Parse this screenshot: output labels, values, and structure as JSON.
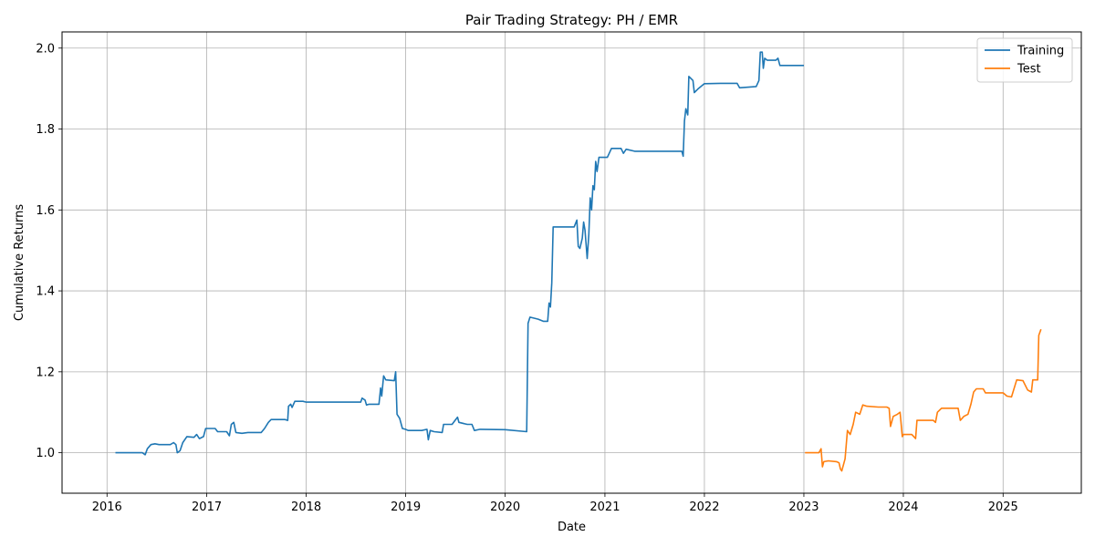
{
  "chart_data": {
    "type": "line",
    "title": "Pair Trading Strategy: PH / EMR",
    "xlabel": "Date",
    "ylabel": "Cumulative Returns",
    "x_ticks": [
      "2016",
      "2017",
      "2018",
      "2019",
      "2020",
      "2021",
      "2022",
      "2023",
      "2024",
      "2025"
    ],
    "y_ticks": [
      "1.0",
      "1.2",
      "1.4",
      "1.6",
      "1.8",
      "2.0"
    ],
    "xlim": [
      "2015-07-20",
      "2025-10-15"
    ],
    "ylim": [
      0.9,
      2.04
    ],
    "grid": true,
    "legend_position": "top-right",
    "series": [
      {
        "name": "Training",
        "color": "#1f77b4",
        "points": [
          [
            "2016-02-01",
            1.0
          ],
          [
            "2016-05-10",
            1.0
          ],
          [
            "2016-05-20",
            0.995
          ],
          [
            "2016-05-28",
            1.01
          ],
          [
            "2016-06-10",
            1.02
          ],
          [
            "2016-06-25",
            1.022
          ],
          [
            "2016-07-10",
            1.02
          ],
          [
            "2016-08-20",
            1.02
          ],
          [
            "2016-09-01",
            1.025
          ],
          [
            "2016-09-10",
            1.02
          ],
          [
            "2016-09-15",
            1.0
          ],
          [
            "2016-09-25",
            1.005
          ],
          [
            "2016-10-05",
            1.025
          ],
          [
            "2016-10-20",
            1.04
          ],
          [
            "2016-11-15",
            1.038
          ],
          [
            "2016-11-25",
            1.045
          ],
          [
            "2016-12-05",
            1.035
          ],
          [
            "2016-12-20",
            1.04
          ],
          [
            "2016-12-28",
            1.06
          ],
          [
            "2017-02-01",
            1.06
          ],
          [
            "2017-02-10",
            1.052
          ],
          [
            "2017-03-15",
            1.052
          ],
          [
            "2017-03-25",
            1.042
          ],
          [
            "2017-04-01",
            1.07
          ],
          [
            "2017-04-10",
            1.075
          ],
          [
            "2017-04-18",
            1.05
          ],
          [
            "2017-05-10",
            1.048
          ],
          [
            "2017-06-01",
            1.05
          ],
          [
            "2017-07-20",
            1.05
          ],
          [
            "2017-08-01",
            1.06
          ],
          [
            "2017-08-15",
            1.075
          ],
          [
            "2017-08-25",
            1.082
          ],
          [
            "2017-09-15",
            1.082
          ],
          [
            "2017-10-15",
            1.082
          ],
          [
            "2017-10-25",
            1.08
          ],
          [
            "2017-10-28",
            1.115
          ],
          [
            "2017-11-05",
            1.12
          ],
          [
            "2017-11-10",
            1.112
          ],
          [
            "2017-11-20",
            1.127
          ],
          [
            "2017-12-20",
            1.127
          ],
          [
            "2018-01-01",
            1.125
          ],
          [
            "2018-03-01",
            1.125
          ],
          [
            "2018-06-01",
            1.125
          ],
          [
            "2018-07-20",
            1.125
          ],
          [
            "2018-07-25",
            1.135
          ],
          [
            "2018-08-05",
            1.13
          ],
          [
            "2018-08-10",
            1.118
          ],
          [
            "2018-08-20",
            1.12
          ],
          [
            "2018-09-10",
            1.12
          ],
          [
            "2018-09-25",
            1.12
          ],
          [
            "2018-10-01",
            1.16
          ],
          [
            "2018-10-05",
            1.14
          ],
          [
            "2018-10-12",
            1.19
          ],
          [
            "2018-10-20",
            1.18
          ],
          [
            "2018-11-20",
            1.178
          ],
          [
            "2018-11-25",
            1.2
          ],
          [
            "2018-11-30",
            1.095
          ],
          [
            "2018-12-10",
            1.085
          ],
          [
            "2018-12-20",
            1.06
          ],
          [
            "2018-12-31",
            1.058
          ],
          [
            "2019-01-10",
            1.055
          ],
          [
            "2019-03-01",
            1.055
          ],
          [
            "2019-03-20",
            1.058
          ],
          [
            "2019-03-25",
            1.032
          ],
          [
            "2019-04-01",
            1.055
          ],
          [
            "2019-04-15",
            1.052
          ],
          [
            "2019-05-15",
            1.05
          ],
          [
            "2019-05-20",
            1.07
          ],
          [
            "2019-06-20",
            1.07
          ],
          [
            "2019-07-01",
            1.08
          ],
          [
            "2019-07-10",
            1.088
          ],
          [
            "2019-07-15",
            1.075
          ],
          [
            "2019-08-15",
            1.07
          ],
          [
            "2019-09-01",
            1.07
          ],
          [
            "2019-09-10",
            1.055
          ],
          [
            "2019-10-01",
            1.058
          ],
          [
            "2020-01-01",
            1.057
          ],
          [
            "2020-03-20",
            1.052
          ],
          [
            "2020-03-25",
            1.32
          ],
          [
            "2020-04-01",
            1.335
          ],
          [
            "2020-05-01",
            1.33
          ],
          [
            "2020-05-20",
            1.325
          ],
          [
            "2020-06-05",
            1.325
          ],
          [
            "2020-06-10",
            1.37
          ],
          [
            "2020-06-15",
            1.36
          ],
          [
            "2020-06-20",
            1.42
          ],
          [
            "2020-06-25",
            1.558
          ],
          [
            "2020-08-01",
            1.558
          ],
          [
            "2020-09-10",
            1.558
          ],
          [
            "2020-09-20",
            1.575
          ],
          [
            "2020-09-25",
            1.51
          ],
          [
            "2020-10-01",
            1.505
          ],
          [
            "2020-10-10",
            1.53
          ],
          [
            "2020-10-15",
            1.57
          ],
          [
            "2020-10-20",
            1.55
          ],
          [
            "2020-10-28",
            1.48
          ],
          [
            "2020-11-03",
            1.54
          ],
          [
            "2020-11-08",
            1.63
          ],
          [
            "2020-11-13",
            1.6
          ],
          [
            "2020-11-18",
            1.66
          ],
          [
            "2020-11-23",
            1.65
          ],
          [
            "2020-11-28",
            1.72
          ],
          [
            "2020-12-03",
            1.695
          ],
          [
            "2020-12-10",
            1.73
          ],
          [
            "2021-01-10",
            1.73
          ],
          [
            "2021-01-25",
            1.752
          ],
          [
            "2021-03-01",
            1.752
          ],
          [
            "2021-03-10",
            1.74
          ],
          [
            "2021-03-20",
            1.75
          ],
          [
            "2021-04-20",
            1.745
          ],
          [
            "2021-06-01",
            1.745
          ],
          [
            "2021-09-01",
            1.745
          ],
          [
            "2021-10-10",
            1.745
          ],
          [
            "2021-10-15",
            1.733
          ],
          [
            "2021-10-20",
            1.82
          ],
          [
            "2021-10-25",
            1.85
          ],
          [
            "2021-11-01",
            1.835
          ],
          [
            "2021-11-05",
            1.93
          ],
          [
            "2021-11-20",
            1.92
          ],
          [
            "2021-11-25",
            1.89
          ],
          [
            "2021-12-10",
            1.9
          ],
          [
            "2022-01-01",
            1.912
          ],
          [
            "2022-03-01",
            1.913
          ],
          [
            "2022-05-01",
            1.913
          ],
          [
            "2022-05-10",
            1.902
          ],
          [
            "2022-07-10",
            1.905
          ],
          [
            "2022-07-20",
            1.92
          ],
          [
            "2022-07-25",
            1.99
          ],
          [
            "2022-08-01",
            1.99
          ],
          [
            "2022-08-05",
            1.95
          ],
          [
            "2022-08-10",
            1.975
          ],
          [
            "2022-08-20",
            1.97
          ],
          [
            "2022-09-20",
            1.97
          ],
          [
            "2022-09-28",
            1.975
          ],
          [
            "2022-10-05",
            1.957
          ],
          [
            "2022-11-01",
            1.957
          ],
          [
            "2023-01-01",
            1.957
          ]
        ]
      },
      {
        "name": "Test",
        "color": "#ff7f0e",
        "points": [
          [
            "2023-01-05",
            1.0
          ],
          [
            "2023-02-25",
            1.0
          ],
          [
            "2023-03-05",
            1.01
          ],
          [
            "2023-03-10",
            0.965
          ],
          [
            "2023-03-15",
            0.978
          ],
          [
            "2023-04-01",
            0.98
          ],
          [
            "2023-05-01",
            0.978
          ],
          [
            "2023-05-10",
            0.975
          ],
          [
            "2023-05-15",
            0.96
          ],
          [
            "2023-05-20",
            0.955
          ],
          [
            "2023-06-01",
            0.985
          ],
          [
            "2023-06-10",
            1.055
          ],
          [
            "2023-06-20",
            1.045
          ],
          [
            "2023-07-01",
            1.07
          ],
          [
            "2023-07-10",
            1.1
          ],
          [
            "2023-07-25",
            1.095
          ],
          [
            "2023-08-05",
            1.118
          ],
          [
            "2023-08-20",
            1.115
          ],
          [
            "2023-10-01",
            1.113
          ],
          [
            "2023-11-01",
            1.113
          ],
          [
            "2023-11-10",
            1.11
          ],
          [
            "2023-11-15",
            1.065
          ],
          [
            "2023-11-25",
            1.09
          ],
          [
            "2023-12-10",
            1.095
          ],
          [
            "2023-12-20",
            1.1
          ],
          [
            "2023-12-28",
            1.04
          ],
          [
            "2024-01-01",
            1.045
          ],
          [
            "2024-02-01",
            1.045
          ],
          [
            "2024-02-15",
            1.035
          ],
          [
            "2024-02-20",
            1.08
          ],
          [
            "2024-03-20",
            1.08
          ],
          [
            "2024-04-20",
            1.08
          ],
          [
            "2024-04-28",
            1.075
          ],
          [
            "2024-05-05",
            1.1
          ],
          [
            "2024-05-20",
            1.11
          ],
          [
            "2024-06-10",
            1.11
          ],
          [
            "2024-07-20",
            1.11
          ],
          [
            "2024-07-28",
            1.08
          ],
          [
            "2024-08-10",
            1.09
          ],
          [
            "2024-08-25",
            1.095
          ],
          [
            "2024-09-05",
            1.12
          ],
          [
            "2024-09-15",
            1.15
          ],
          [
            "2024-09-25",
            1.158
          ],
          [
            "2024-10-20",
            1.158
          ],
          [
            "2024-10-28",
            1.148
          ],
          [
            "2024-11-20",
            1.148
          ],
          [
            "2025-01-01",
            1.148
          ],
          [
            "2025-01-15",
            1.14
          ],
          [
            "2025-02-01",
            1.138
          ],
          [
            "2025-02-20",
            1.18
          ],
          [
            "2025-03-15",
            1.178
          ],
          [
            "2025-04-01",
            1.155
          ],
          [
            "2025-04-15",
            1.15
          ],
          [
            "2025-04-20",
            1.18
          ],
          [
            "2025-05-08",
            1.18
          ],
          [
            "2025-05-12",
            1.29
          ],
          [
            "2025-05-20",
            1.305
          ]
        ]
      }
    ]
  }
}
